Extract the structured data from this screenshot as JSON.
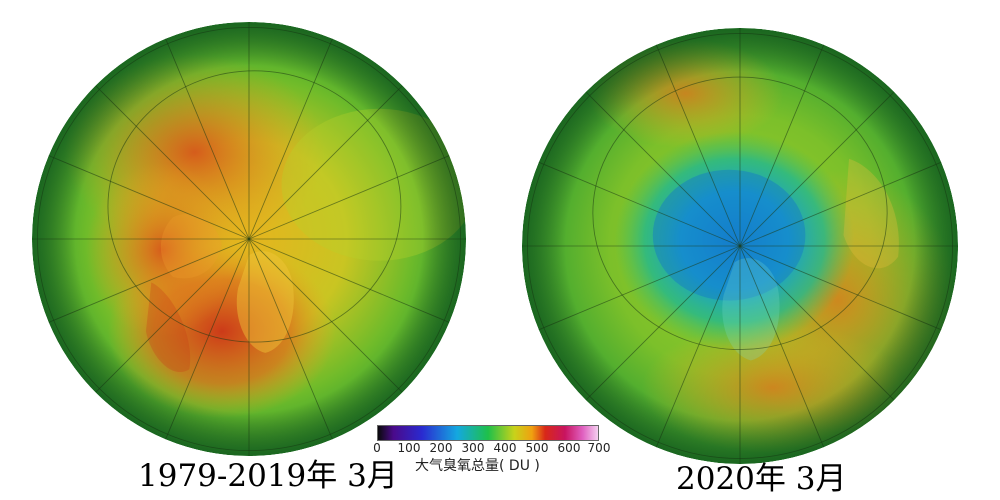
{
  "maps": [
    {
      "caption": "1979-2019年 3月"
    },
    {
      "caption": "2020年 3月"
    }
  ],
  "colorbar": {
    "ticks": [
      "0",
      "100",
      "200",
      "300",
      "400",
      "500",
      "600",
      "700"
    ],
    "label": "大气臭氧总量( DU )",
    "min": 0,
    "max": 700,
    "colors": [
      "#0a0a0a",
      "#4a0a8a",
      "#2a2ad0",
      "#14a8e0",
      "#1ec04a",
      "#c8d21a",
      "#f0a010",
      "#d82818",
      "#c81460",
      "#e060c0",
      "#f4d0f0"
    ]
  },
  "colors": {
    "ocean_green": "#3aa82a",
    "high_ozone": "#d24a1c",
    "low_ozone": "#1aa0c8"
  }
}
